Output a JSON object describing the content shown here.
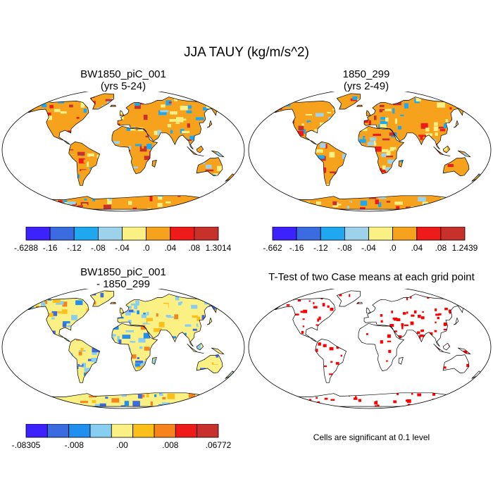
{
  "title": "JJA TAUY (kg/m/s^2)",
  "panels": [
    {
      "id": "p1",
      "title_line1": "BW1850_piC_001",
      "title_line2": "(yrs 5-24)"
    },
    {
      "id": "p2",
      "title_line1": "1850_299",
      "title_line2": "(yrs 2-49)"
    },
    {
      "id": "p3",
      "title_line1": "BW1850_piC_001",
      "title_line2": "- 1850_299"
    },
    {
      "id": "p4",
      "title_line1": "T-Test of two Case means at each grid point",
      "title_line2": ""
    }
  ],
  "colorbars": {
    "cb1": {
      "colors": [
        "#3b22ff",
        "#3a6be0",
        "#1fa8f0",
        "#9dd2ea",
        "#fbf083",
        "#f7a21c",
        "#ef1a1a",
        "#c8302c"
      ],
      "labels": [
        "-.6288",
        "-.16",
        "-.12",
        "-.08",
        "-.04",
        ".0",
        ".04",
        ".08",
        "1.3014"
      ]
    },
    "cb2": {
      "colors": [
        "#3b22ff",
        "#3a6be0",
        "#1fa8f0",
        "#9dd2ea",
        "#fbf083",
        "#f7a21c",
        "#ef1a1a",
        "#c8302c"
      ],
      "labels": [
        "-.662",
        "-.16",
        "-.12",
        "-.08",
        "-.04",
        ".0",
        ".04",
        ".08",
        "1.2439"
      ]
    },
    "cb3": {
      "colors": [
        "#3b22ff",
        "#3a6be0",
        "#1f8ff0",
        "#87cef0",
        "#fbf083",
        "#fbbf1a",
        "#f7831c",
        "#ef1a1a",
        "#c8302c"
      ],
      "labels": [
        "-.08305",
        "-.008",
        ".00",
        ".008",
        ".06772"
      ]
    }
  },
  "note": "Cells are significant at 0.1 level",
  "significant_color": "#ff0000"
}
